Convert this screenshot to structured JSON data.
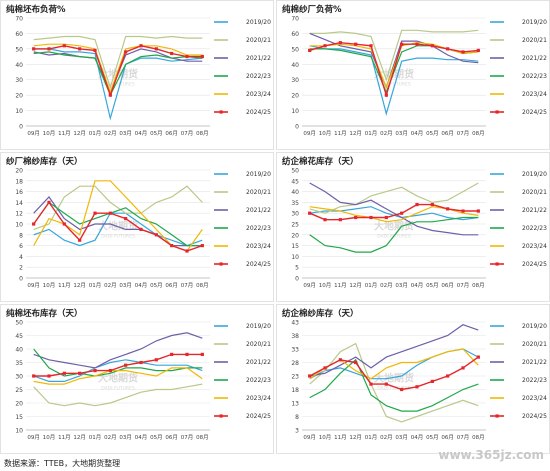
{
  "source_note": "数据来源：TTEB，大地期货整理",
  "watermark": "www.365jz.com",
  "logo": {
    "cn": "大地期货",
    "en": "DADI FUTURES"
  },
  "series_colors": {
    "2019/20": "#38a6dc",
    "2020/21": "#b8c98a",
    "2021/22": "#6f5fa8",
    "2022/23": "#20a84a",
    "2023/24": "#f2b705",
    "2024/25": "#e5262b"
  },
  "chart_data": [
    {
      "type": "line",
      "title": "纯棉坯布负荷%",
      "categories": [
        "09月",
        "10月",
        "11月",
        "12月",
        "01月",
        "02月",
        "03月",
        "04月",
        "05月",
        "06月",
        "07月",
        "08月"
      ],
      "ylim": [
        0,
        70
      ],
      "yticks": [
        0,
        10,
        20,
        30,
        40,
        50,
        60,
        70
      ],
      "series": [
        {
          "name": "2019/20",
          "values": [
            50,
            50,
            48,
            48,
            47,
            5,
            40,
            44,
            44,
            42,
            43,
            44
          ]
        },
        {
          "name": "2020/21",
          "values": [
            56,
            57,
            58,
            58,
            56,
            25,
            58,
            58,
            57,
            58,
            57,
            57
          ]
        },
        {
          "name": "2021/22",
          "values": [
            48,
            46,
            47,
            45,
            44,
            22,
            46,
            50,
            48,
            44,
            42,
            42
          ]
        },
        {
          "name": "2022/23",
          "values": [
            47,
            48,
            46,
            45,
            44,
            20,
            40,
            45,
            46,
            44,
            45,
            44
          ]
        },
        {
          "name": "2023/24",
          "values": [
            52,
            53,
            53,
            52,
            50,
            22,
            50,
            52,
            52,
            50,
            46,
            46
          ]
        },
        {
          "name": "2024/25",
          "values": [
            50,
            50,
            52,
            50,
            49,
            20,
            48,
            52,
            50,
            47,
            45,
            45
          ]
        }
      ]
    },
    {
      "type": "line",
      "title": "纯棉纱厂负荷%",
      "categories": [
        "09月",
        "10月",
        "11月",
        "12月",
        "01月",
        "02月",
        "03月",
        "04月",
        "05月",
        "06月",
        "07月",
        "08月"
      ],
      "ylim": [
        0,
        70
      ],
      "yticks": [
        0,
        10,
        20,
        30,
        40,
        50,
        60,
        70
      ],
      "series": [
        {
          "name": "2019/20",
          "values": [
            52,
            50,
            50,
            48,
            46,
            8,
            42,
            44,
            44,
            43,
            43,
            42
          ]
        },
        {
          "name": "2020/21",
          "values": [
            60,
            60,
            61,
            60,
            58,
            30,
            62,
            62,
            61,
            61,
            61,
            62
          ]
        },
        {
          "name": "2021/22",
          "values": [
            60,
            56,
            52,
            50,
            48,
            25,
            55,
            55,
            52,
            46,
            42,
            41
          ]
        },
        {
          "name": "2022/23",
          "values": [
            50,
            50,
            49,
            47,
            45,
            22,
            48,
            52,
            52,
            50,
            47,
            48
          ]
        },
        {
          "name": "2023/24",
          "values": [
            52,
            52,
            53,
            52,
            50,
            25,
            52,
            54,
            53,
            50,
            47,
            48
          ]
        },
        {
          "name": "2024/25",
          "values": [
            49,
            52,
            54,
            53,
            52,
            20,
            53,
            53,
            52,
            50,
            48,
            49
          ]
        }
      ]
    },
    {
      "type": "line",
      "title": "纱厂棉纱库存（天）",
      "categories": [
        "09月",
        "10月",
        "11月",
        "12月",
        "01月",
        "02月",
        "03月",
        "04月",
        "05月",
        "06月",
        "07月",
        "08月"
      ],
      "ylim": [
        0,
        20
      ],
      "yticks": [
        0,
        2,
        4,
        6,
        8,
        10,
        12,
        14,
        16,
        18,
        20
      ],
      "series": [
        {
          "name": "2019/20",
          "values": [
            8,
            9,
            7,
            6,
            7,
            12,
            12,
            10,
            8,
            7,
            6,
            7
          ]
        },
        {
          "name": "2020/21",
          "values": [
            9,
            10,
            15,
            17,
            17,
            14,
            12,
            12,
            14,
            15,
            17,
            14
          ]
        },
        {
          "name": "2021/22",
          "values": [
            12,
            15,
            11,
            9,
            10,
            10,
            9,
            9,
            8,
            6,
            6,
            6
          ]
        },
        {
          "name": "2022/23",
          "values": [
            10,
            14,
            12,
            10,
            11,
            12,
            13,
            11,
            10,
            8,
            6,
            6
          ]
        },
        {
          "name": "2023/24",
          "values": [
            6,
            11,
            10,
            8,
            18,
            18,
            15,
            12,
            9,
            6,
            5,
            9
          ]
        },
        {
          "name": "2024/25",
          "values": [
            10,
            14,
            10,
            7,
            12,
            12,
            11,
            9,
            8,
            6,
            5,
            6
          ]
        }
      ]
    },
    {
      "type": "line",
      "title": "纺企棉花库存（天）",
      "categories": [
        "09月",
        "10月",
        "11月",
        "12月",
        "01月",
        "02月",
        "03月",
        "04月",
        "05月",
        "06月",
        "07月",
        "08月"
      ],
      "ylim": [
        0,
        50
      ],
      "yticks": [
        0,
        5,
        10,
        15,
        20,
        25,
        30,
        35,
        40,
        45,
        50
      ],
      "series": [
        {
          "name": "2019/20",
          "values": [
            30,
            31,
            31,
            32,
            33,
            30,
            28,
            29,
            30,
            28,
            27,
            28
          ]
        },
        {
          "name": "2020/21",
          "values": [
            32,
            30,
            33,
            34,
            38,
            40,
            42,
            38,
            35,
            36,
            40,
            44
          ]
        },
        {
          "name": "2021/22",
          "values": [
            44,
            40,
            35,
            34,
            36,
            32,
            28,
            24,
            22,
            21,
            20,
            20
          ]
        },
        {
          "name": "2022/23",
          "values": [
            20,
            15,
            14,
            12,
            12,
            15,
            24,
            26,
            26,
            27,
            28,
            28
          ]
        },
        {
          "name": "2023/24",
          "values": [
            33,
            32,
            31,
            29,
            28,
            26,
            27,
            30,
            33,
            32,
            30,
            29
          ]
        },
        {
          "name": "2024/25",
          "values": [
            30,
            27,
            27,
            28,
            28,
            28,
            30,
            34,
            34,
            32,
            31,
            31
          ]
        }
      ]
    },
    {
      "type": "line",
      "title": "纯棉坯布库存（天）",
      "categories": [
        "09月",
        "10月",
        "11月",
        "12月",
        "01月",
        "02月",
        "03月",
        "04月",
        "05月",
        "06月",
        "07月",
        "08月"
      ],
      "ylim": [
        10,
        50
      ],
      "yticks": [
        10,
        15,
        20,
        25,
        30,
        35,
        40,
        45,
        50
      ],
      "series": [
        {
          "name": "2019/20",
          "values": [
            30,
            28,
            28,
            30,
            33,
            35,
            36,
            35,
            34,
            34,
            34,
            32
          ]
        },
        {
          "name": "2020/21",
          "values": [
            26,
            20,
            19,
            20,
            19,
            20,
            22,
            24,
            25,
            25,
            26,
            27
          ]
        },
        {
          "name": "2021/22",
          "values": [
            38,
            36,
            35,
            34,
            33,
            36,
            38,
            40,
            43,
            45,
            46,
            44
          ]
        },
        {
          "name": "2022/23",
          "values": [
            40,
            33,
            30,
            31,
            30,
            31,
            33,
            33,
            32,
            32,
            33,
            33
          ]
        },
        {
          "name": "2023/24",
          "values": [
            28,
            27,
            27,
            29,
            30,
            32,
            32,
            31,
            30,
            33,
            33,
            29
          ]
        },
        {
          "name": "2024/25",
          "values": [
            30,
            30,
            31,
            31,
            32,
            32,
            34,
            35,
            36,
            38,
            38,
            38
          ]
        }
      ]
    },
    {
      "type": "line",
      "title": "纺企棉纱库存（天）",
      "categories": [
        "09月",
        "10月",
        "11月",
        "12月",
        "01月",
        "02月",
        "03月",
        "04月",
        "05月",
        "06月",
        "07月",
        "08月"
      ],
      "ylim": [
        3,
        43
      ],
      "yticks": [
        3,
        8,
        13,
        18,
        23,
        28,
        33,
        38,
        43
      ],
      "series": [
        {
          "name": "2019/20",
          "values": [
            22,
            25,
            26,
            24,
            22,
            22,
            23,
            27,
            30,
            32,
            33,
            30
          ]
        },
        {
          "name": "2020/21",
          "values": [
            20,
            25,
            32,
            35,
            20,
            8,
            6,
            8,
            10,
            12,
            14,
            12
          ]
        },
        {
          "name": "2021/22",
          "values": [
            23,
            24,
            27,
            30,
            26,
            30,
            32,
            34,
            36,
            38,
            42,
            40
          ]
        },
        {
          "name": "2022/23",
          "values": [
            15,
            18,
            24,
            29,
            16,
            12,
            10,
            10,
            12,
            15,
            18,
            20
          ]
        },
        {
          "name": "2023/24",
          "values": [
            22,
            26,
            29,
            25,
            22,
            26,
            28,
            28,
            30,
            32,
            33,
            27
          ]
        },
        {
          "name": "2024/25",
          "values": [
            23,
            26,
            29,
            28,
            20,
            20,
            18,
            19,
            21,
            23,
            26,
            30
          ]
        }
      ]
    }
  ]
}
